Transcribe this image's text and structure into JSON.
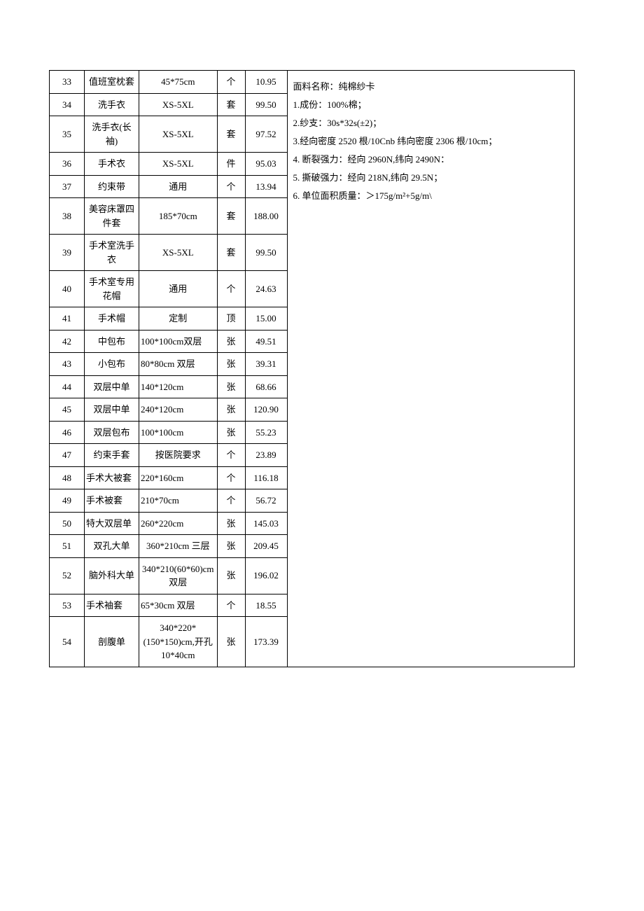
{
  "table": {
    "rows": [
      {
        "idx": "33",
        "name": "值班室枕套",
        "spec": "45*75cm",
        "unit": "个",
        "price": "10.95"
      },
      {
        "idx": "34",
        "name": "洗手衣",
        "spec": "XS-5XL",
        "unit": "套",
        "price": "99.50"
      },
      {
        "idx": "35",
        "name": "洗手衣(长袖)",
        "spec": "XS-5XL",
        "unit": "套",
        "price": "97.52"
      },
      {
        "idx": "36",
        "name": "手术衣",
        "spec": "XS-5XL",
        "unit": "件",
        "price": "95.03"
      },
      {
        "idx": "37",
        "name": "约束带",
        "spec": "通用",
        "unit": "个",
        "price": "13.94"
      },
      {
        "idx": "38",
        "name": "美容床罩四件套",
        "spec": "185*70cm",
        "unit": "套",
        "price": "188.00"
      },
      {
        "idx": "39",
        "name": "手术室洗手衣",
        "spec": "XS-5XL",
        "unit": "套",
        "price": "99.50"
      },
      {
        "idx": "40",
        "name": "手术室专用花帽",
        "spec": "通用",
        "unit": "个",
        "price": "24.63"
      },
      {
        "idx": "41",
        "name": "手术帽",
        "spec": "定制",
        "unit": "顶",
        "price": "15.00"
      },
      {
        "idx": "42",
        "name": "中包布",
        "spec": "100*100cm双层",
        "unit": "张",
        "price": "49.51",
        "specAlign": "left"
      },
      {
        "idx": "43",
        "name": "小包布",
        "spec": "80*80cm 双层",
        "unit": "张",
        "price": "39.31",
        "specAlign": "left"
      },
      {
        "idx": "44",
        "name": "双层中单",
        "spec": "140*120cm",
        "unit": "张",
        "price": "68.66",
        "specAlign": "left"
      },
      {
        "idx": "45",
        "name": "双层中单",
        "spec": "240*120cm",
        "unit": "张",
        "price": "120.90",
        "specAlign": "left"
      },
      {
        "idx": "46",
        "name": "双层包布",
        "spec": "100*100cm",
        "unit": "张",
        "price": "55.23",
        "specAlign": "left"
      },
      {
        "idx": "47",
        "name": "约束手套",
        "spec": "按医院要求",
        "unit": "个",
        "price": "23.89"
      },
      {
        "idx": "48",
        "name": "手术大被套",
        "spec": "220*160cm",
        "unit": "个",
        "price": "116.18",
        "nameAlign": "left",
        "specAlign": "left"
      },
      {
        "idx": "49",
        "name": "手术被套",
        "spec": "210*70cm",
        "unit": "个",
        "price": "56.72",
        "nameAlign": "left",
        "specAlign": "left"
      },
      {
        "idx": "50",
        "name": "特大双层单",
        "spec": "260*220cm",
        "unit": "张",
        "price": "145.03",
        "nameAlign": "left",
        "specAlign": "left"
      },
      {
        "idx": "51",
        "name": "双孔大单",
        "spec": "360*210cm 三层",
        "unit": "张",
        "price": "209.45"
      },
      {
        "idx": "52",
        "name": "脑外科大单",
        "spec": "340*210(60*60)cm 双层",
        "unit": "张",
        "price": "196.02"
      },
      {
        "idx": "53",
        "name": "手术袖套",
        "spec": "65*30cm 双层",
        "unit": "个",
        "price": "18.55",
        "nameAlign": "left",
        "specAlign": "left"
      },
      {
        "idx": "54",
        "name": "剖腹单",
        "spec": "340*220*(150*150)cm,开孔10*40cm",
        "unit": "张",
        "price": "173.39"
      }
    ]
  },
  "description": {
    "lines": [
      "面料名称：纯棉纱卡",
      "1.成份：100%棉；",
      "2.纱支：30s*32s(±2)；",
      "3.经向密度 2520 根/10Cnb 纬向密度 2306 根/10cm；",
      "4. 断裂强力：经向 2960N,纬向 2490N：",
      "5. 撕破强力：经向 218N,纬向 29.5N；",
      "6. 单位面积质量：＞175g/m²+5g/m\\"
    ]
  },
  "style": {
    "border_color": "#000000",
    "background_color": "#ffffff",
    "font_size_table": 13,
    "font_size_desc": 13,
    "col_widths": {
      "idx": 50,
      "name": 78,
      "spec": 82,
      "unit": 40,
      "price": 60,
      "desc": 410
    }
  }
}
